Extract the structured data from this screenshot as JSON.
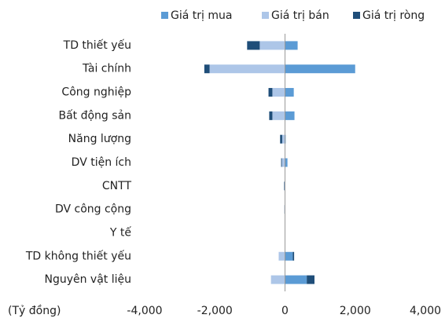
{
  "chart_data": {
    "type": "bar",
    "orientation": "horizontal",
    "stacked": true,
    "categories": [
      "TD thiết yếu",
      "Tài chính",
      "Công nghiệp",
      "Bất động sản",
      "Năng lượng",
      "DV tiện ích",
      "CNTT",
      "DV công cộng",
      "Y tế",
      "TD không thiết yếu",
      "Nguyên vật liệu"
    ],
    "series": [
      {
        "name": "Giá trị mua",
        "color": "#5b9bd5",
        "values": [
          360,
          2000,
          250,
          270,
          20,
          70,
          10,
          5,
          5,
          220,
          620
        ]
      },
      {
        "name": "Giá trị bán",
        "color": "#adc6e8",
        "values": [
          -720,
          -2150,
          -360,
          -360,
          -80,
          -90,
          -20,
          -10,
          -5,
          -180,
          -400
        ]
      },
      {
        "name": "Giá trị ròng",
        "color": "#1f4e79",
        "values": [
          -360,
          -150,
          -110,
          -90,
          -60,
          -20,
          -10,
          -5,
          0,
          40,
          220
        ]
      }
    ],
    "x_label": "(Tỷ đồng)",
    "xlim": [
      -4000,
      4000
    ],
    "xticks": [
      {
        "value": -4000,
        "label": "-4,000"
      },
      {
        "value": -2000,
        "label": "-2,000"
      },
      0,
      {
        "value": 2000,
        "label": "2,000"
      },
      {
        "value": 4000,
        "label": "4,000"
      }
    ],
    "legend": "top",
    "grid": false
  }
}
